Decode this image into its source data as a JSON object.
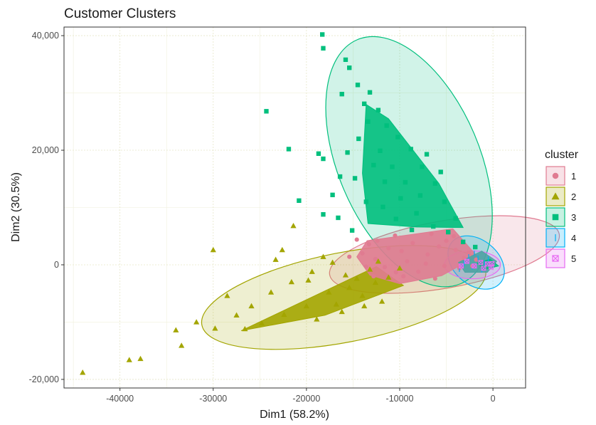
{
  "chart_data": {
    "type": "scatter",
    "title": "Customer Clusters",
    "xlabel": "Dim1 (58.2%)",
    "ylabel": "Dim2 (30.5%)",
    "xlim": [
      -46000,
      3500
    ],
    "ylim": [
      -21500,
      41500
    ],
    "x_ticks": [
      -40000,
      -30000,
      -20000,
      -10000,
      0
    ],
    "x_tick_labels": [
      "-40000",
      "-30000",
      "-20000",
      "-10000",
      "0"
    ],
    "y_ticks": [
      -20000,
      0,
      20000,
      40000
    ],
    "y_tick_labels": [
      "-20,000",
      "0",
      "20,000",
      "40,000"
    ],
    "grid": true,
    "legend": {
      "title": "cluster",
      "position": "right",
      "entries": [
        "1",
        "2",
        "3",
        "4",
        "5"
      ]
    },
    "series": [
      {
        "name": "1",
        "marker": "circle",
        "color": "#E07B91",
        "points": [
          [
            -4200,
            5000
          ],
          [
            -5800,
            3200
          ],
          [
            -7000,
            1800
          ],
          [
            -8600,
            3800
          ],
          [
            -9800,
            2400
          ],
          [
            -11200,
            2900
          ],
          [
            -12400,
            4200
          ],
          [
            -13300,
            3600
          ],
          [
            -10500,
            5100
          ],
          [
            -6600,
            5400
          ],
          [
            -4000,
            2600
          ],
          [
            -3100,
            1200
          ],
          [
            -5200,
            -200
          ],
          [
            -7200,
            200
          ],
          [
            -9200,
            600
          ],
          [
            -10400,
            -1300
          ],
          [
            -11600,
            -400
          ],
          [
            -12600,
            1000
          ],
          [
            -14000,
            2000
          ],
          [
            -15400,
            1400
          ],
          [
            -14600,
            4400
          ],
          [
            -8000,
            -1200
          ],
          [
            -6200,
            -2400
          ],
          [
            -3600,
            -600
          ],
          [
            -2600,
            2100
          ],
          [
            -1800,
            900
          ],
          [
            -5000,
            4200
          ],
          [
            -9600,
            -2000
          ],
          [
            -12800,
            -2000
          ],
          [
            -3200,
            3800
          ],
          [
            -2200,
            -200
          ],
          [
            -13600,
            -300
          ]
        ],
        "ellipse": {
          "cx": -5200,
          "cy": 1800,
          "rx": 12500,
          "ry": 3600,
          "angle_deg": 10
        }
      },
      {
        "name": "2",
        "marker": "triangle",
        "color": "#A3A500",
        "points": [
          [
            -44000,
            -18800
          ],
          [
            -39000,
            -16600
          ],
          [
            -37800,
            -16400
          ],
          [
            -33400,
            -14100
          ],
          [
            -34000,
            -11400
          ],
          [
            -31800,
            -10000
          ],
          [
            -30000,
            2600
          ],
          [
            -29800,
            -11100
          ],
          [
            -27500,
            -8800
          ],
          [
            -28500,
            -5400
          ],
          [
            -25900,
            -7200
          ],
          [
            -23300,
            900
          ],
          [
            -22600,
            2600
          ],
          [
            -21400,
            6800
          ],
          [
            -19800,
            -2700
          ],
          [
            -18200,
            1400
          ],
          [
            -16800,
            -6900
          ],
          [
            -15400,
            -4000
          ],
          [
            -14000,
            -5400
          ],
          [
            -12600,
            -3100
          ],
          [
            -11200,
            -2200
          ],
          [
            -10000,
            -600
          ],
          [
            -13200,
            -800
          ],
          [
            -15800,
            -1800
          ],
          [
            -17600,
            -4800
          ],
          [
            -20000,
            -7200
          ],
          [
            -22400,
            -8700
          ],
          [
            -24800,
            -10200
          ],
          [
            -26600,
            -11200
          ],
          [
            -18900,
            -9500
          ],
          [
            -16200,
            -8200
          ],
          [
            -13800,
            -7200
          ],
          [
            -11900,
            -6400
          ],
          [
            -21600,
            -3000
          ],
          [
            -23800,
            -4800
          ],
          [
            -19400,
            -1200
          ],
          [
            -17200,
            400
          ],
          [
            -14600,
            -2400
          ],
          [
            -12300,
            600
          ]
        ],
        "ellipse": {
          "cx": -16000,
          "cy": -5700,
          "rx": 15500,
          "ry": 4800,
          "angle_deg": 11
        }
      },
      {
        "name": "3",
        "marker": "square",
        "color": "#00BF7D",
        "points": [
          [
            -18300,
            40200
          ],
          [
            -18200,
            37800
          ],
          [
            -15800,
            35800
          ],
          [
            -15400,
            34400
          ],
          [
            -24300,
            26800
          ],
          [
            -21900,
            20200
          ],
          [
            -18700,
            19400
          ],
          [
            -18200,
            18500
          ],
          [
            -14500,
            31400
          ],
          [
            -16200,
            29800
          ],
          [
            -13200,
            30100
          ],
          [
            -13800,
            28100
          ],
          [
            -12300,
            27000
          ],
          [
            -11400,
            24300
          ],
          [
            -10200,
            22300
          ],
          [
            -8800,
            20200
          ],
          [
            -7600,
            17100
          ],
          [
            -6200,
            14200
          ],
          [
            -5200,
            11000
          ],
          [
            -4000,
            8100
          ],
          [
            -12800,
            17400
          ],
          [
            -11600,
            14500
          ],
          [
            -9900,
            11600
          ],
          [
            -8200,
            9000
          ],
          [
            -6400,
            6700
          ],
          [
            -14400,
            22000
          ],
          [
            -15600,
            19600
          ],
          [
            -16400,
            15400
          ],
          [
            -17200,
            12200
          ],
          [
            -18200,
            8800
          ],
          [
            -20800,
            11200
          ],
          [
            -16600,
            8200
          ],
          [
            -15100,
            6000
          ],
          [
            -13600,
            11000
          ],
          [
            -12100,
            19900
          ],
          [
            -10800,
            17100
          ],
          [
            -9400,
            14400
          ],
          [
            -7800,
            12100
          ],
          [
            -14800,
            15100
          ],
          [
            -13400,
            25000
          ],
          [
            -11800,
            10100
          ],
          [
            -10400,
            8000
          ],
          [
            -8700,
            6100
          ],
          [
            -4800,
            5700
          ],
          [
            -3200,
            4000
          ],
          [
            -1900,
            3100
          ],
          [
            -5600,
            16200
          ],
          [
            -7100,
            19300
          ]
        ],
        "ellipse": {
          "cx": -9000,
          "cy": 18000,
          "rx": 14200,
          "ry": 7600,
          "angle_deg": -67
        }
      },
      {
        "name": "4",
        "marker": "vline",
        "color": "#00B0F6",
        "points": [
          [
            -2200,
            -400
          ],
          [
            -1600,
            1200
          ],
          [
            -900,
            300
          ],
          [
            -3100,
            200
          ],
          [
            -2600,
            1400
          ],
          [
            -400,
            -300
          ],
          [
            -1200,
            -900
          ],
          [
            -3600,
            -800
          ],
          [
            -500,
            1000
          ],
          [
            -2000,
            2000
          ]
        ],
        "ellipse": {
          "cx": -1800,
          "cy": 400,
          "rx": 3400,
          "ry": 2400,
          "angle_deg": -40
        }
      },
      {
        "name": "5",
        "marker": "square-cross",
        "color": "#E76BF3",
        "points": [
          [
            -2000,
            -200
          ],
          [
            -1300,
            400
          ],
          [
            -600,
            150
          ],
          [
            -200,
            -400
          ],
          [
            -2800,
            600
          ],
          [
            -3400,
            -200
          ],
          [
            -1000,
            -600
          ],
          [
            -100,
            200
          ]
        ],
        "ellipse": {
          "cx": -2200,
          "cy": 0,
          "rx": 3000,
          "ry": 1500,
          "angle_deg": 0
        }
      }
    ]
  }
}
